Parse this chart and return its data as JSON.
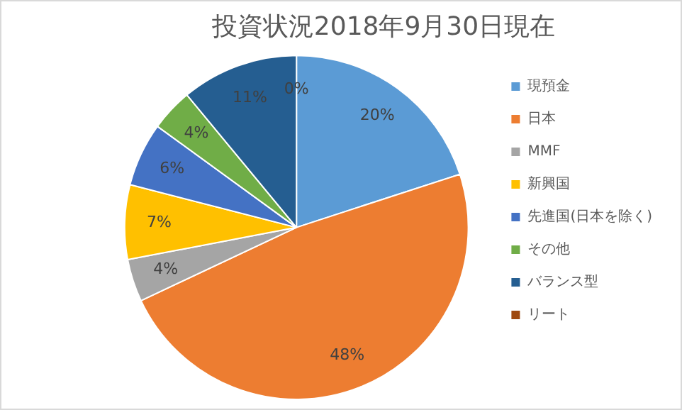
{
  "chart_data": {
    "type": "pie",
    "title": "投資状況2018年9月30日現在",
    "categories": [
      "現預金",
      "日本",
      "MMF",
      "新興国",
      "先進国(日本を除く)",
      "その他",
      "バランス型",
      "リート"
    ],
    "values": [
      20,
      48,
      4,
      7,
      6,
      4,
      11,
      0
    ],
    "value_labels": [
      "20%",
      "48%",
      "4%",
      "7%",
      "6%",
      "4%",
      "11%",
      "0%"
    ],
    "colors": [
      "#5b9bd5",
      "#ed7d31",
      "#a5a5a5",
      "#ffc000",
      "#4472c4",
      "#70ad47",
      "#255e91",
      "#9e480e"
    ],
    "legend": "right"
  }
}
